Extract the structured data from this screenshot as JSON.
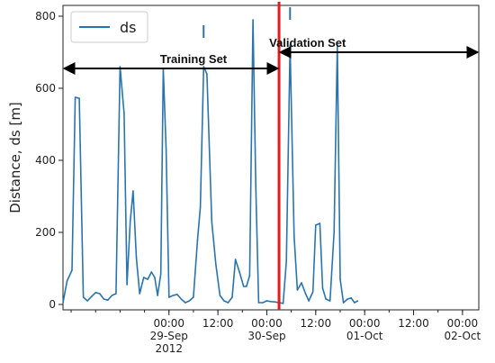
{
  "chart_data": {
    "type": "line",
    "ylabel": "Distance, ds [m]",
    "xlabel": "",
    "ylim": [
      -15,
      830
    ],
    "yticks": [
      0,
      200,
      400,
      600,
      800
    ],
    "xlim": [
      -26.0,
      76.0
    ],
    "xticks": [
      {
        "x": 0,
        "lines": [
          "00:00",
          "29-Sep",
          "2012"
        ]
      },
      {
        "x": 12,
        "lines": [
          "12:00"
        ]
      },
      {
        "x": 24,
        "lines": [
          "00:00",
          "30-Sep"
        ]
      },
      {
        "x": 36,
        "lines": [
          "12:00"
        ]
      },
      {
        "x": 48,
        "lines": [
          "00:00",
          "01-Oct"
        ]
      },
      {
        "x": 60,
        "lines": [
          "12:00"
        ]
      },
      {
        "x": 72,
        "lines": [
          "00:00",
          "02-Oct"
        ]
      }
    ],
    "grid": false,
    "legend_position": "top-left",
    "series": [
      {
        "name": "ds",
        "color": "#2a74ae",
        "points": [
          [
            -26.0,
            5
          ],
          [
            -25.0,
            65
          ],
          [
            -23.8,
            95
          ],
          [
            -23.0,
            575
          ],
          [
            -22.0,
            572
          ],
          [
            -21.0,
            20
          ],
          [
            -20.0,
            10
          ],
          [
            -19.0,
            22
          ],
          [
            -18.0,
            33
          ],
          [
            -17.0,
            30
          ],
          [
            -16.0,
            15
          ],
          [
            -15.0,
            12
          ],
          [
            -14.0,
            25
          ],
          [
            -13.0,
            30
          ],
          [
            -12.0,
            660
          ],
          [
            -11.0,
            530
          ],
          [
            -10.3,
            55
          ],
          [
            -9.5,
            230
          ],
          [
            -8.8,
            315
          ],
          [
            -8.0,
            130
          ],
          [
            -7.2,
            30
          ],
          [
            -6.2,
            75
          ],
          [
            -5.2,
            70
          ],
          [
            -4.3,
            90
          ],
          [
            -3.5,
            75
          ],
          [
            -2.8,
            25
          ],
          [
            -2.0,
            85
          ],
          [
            -1.4,
            655
          ],
          [
            -0.7,
            430
          ],
          [
            0.0,
            20
          ],
          [
            1.0,
            25
          ],
          [
            2.0,
            28
          ],
          [
            3.0,
            15
          ],
          [
            4.0,
            5
          ],
          [
            5.0,
            10
          ],
          [
            6.0,
            20
          ],
          [
            7.0,
            180
          ],
          [
            7.7,
            270
          ],
          [
            8.5,
            660
          ],
          [
            9.3,
            640
          ],
          [
            10.5,
            230
          ],
          [
            11.5,
            110
          ],
          [
            12.5,
            25
          ],
          [
            13.5,
            10
          ],
          [
            14.5,
            5
          ],
          [
            15.5,
            20
          ],
          [
            16.3,
            125
          ],
          [
            17.3,
            90
          ],
          [
            18.3,
            50
          ],
          [
            19.0,
            50
          ],
          [
            19.8,
            80
          ],
          [
            20.6,
            790
          ],
          [
            21.3,
            330
          ],
          [
            22.0,
            5
          ],
          [
            23.0,
            5
          ],
          [
            24.0,
            10
          ],
          [
            25.0,
            8
          ],
          [
            26.0,
            7
          ],
          [
            27.0,
            5
          ],
          [
            28.0,
            3
          ],
          [
            28.8,
            120
          ],
          [
            29.7,
            720
          ],
          [
            30.7,
            190
          ],
          [
            31.5,
            40
          ],
          [
            32.5,
            60
          ],
          [
            33.5,
            30
          ],
          [
            34.3,
            10
          ],
          [
            35.3,
            35
          ],
          [
            36.0,
            220
          ],
          [
            37.0,
            225
          ],
          [
            37.7,
            45
          ],
          [
            38.5,
            15
          ],
          [
            39.5,
            10
          ],
          [
            40.5,
            200
          ],
          [
            41.3,
            720
          ],
          [
            42.0,
            70
          ],
          [
            42.8,
            5
          ],
          [
            43.8,
            15
          ],
          [
            44.7,
            18
          ],
          [
            45.5,
            5
          ],
          [
            46.3,
            10
          ]
        ]
      }
    ],
    "verticals": [
      {
        "x": 27.0,
        "color": "#e31a1c"
      }
    ],
    "annotations": [
      {
        "label": "Training Set",
        "from": -26.0,
        "to": 27.0,
        "y": 655,
        "label_x": 6.0,
        "label_y": 683
      },
      {
        "label": "Validation Set",
        "from": 27.0,
        "to": 76.0,
        "y": 700,
        "label_x": 34.0,
        "label_y": 728
      }
    ],
    "marker_ticks": [
      {
        "x": 8.5,
        "y_from": 740,
        "y_to": 775
      },
      {
        "x": 29.7,
        "y_from": 790,
        "y_to": 825
      }
    ]
  }
}
